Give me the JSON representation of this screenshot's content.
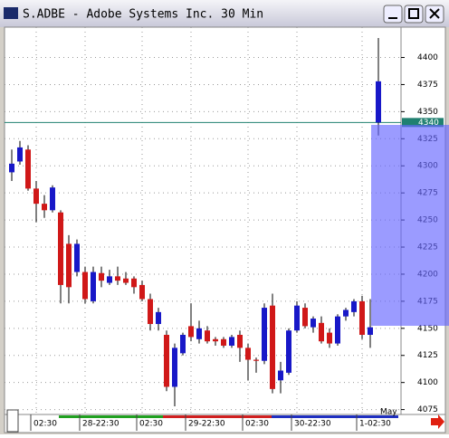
{
  "chart_data": {
    "type": "candlestick",
    "title": "S.ADBE - Adobe Systems Inc. 30 Min",
    "categories": [
      null,
      null,
      null,
      "02:30",
      null,
      null,
      null,
      null,
      null,
      "28-22:30",
      null,
      null,
      null,
      null,
      null,
      null,
      "02:30",
      null,
      null,
      null,
      null,
      null,
      "29-22:30",
      null,
      null,
      null,
      null,
      null,
      null,
      "02:30",
      null,
      null,
      null,
      null,
      null,
      "30-22:30",
      null,
      null,
      null,
      null,
      null,
      null,
      null,
      "1-02:30",
      null,
      null
    ],
    "open": [
      4294,
      4304,
      4315,
      4279,
      4265,
      4259,
      4257,
      4228,
      4202,
      4202,
      4175,
      4201,
      4192,
      4198,
      4196,
      4196,
      4190,
      4177,
      4154,
      4144,
      4096,
      4127,
      4152,
      4140,
      4148,
      4140,
      4140,
      4134,
      4144,
      4132,
      4121,
      4120,
      4171,
      4102,
      4109,
      4148,
      4169,
      4151,
      4155,
      4146,
      4136,
      4161,
      4165,
      4175,
      4144,
      4340
    ],
    "high": [
      4315,
      4323,
      4319,
      4286,
      4273,
      4282,
      4259,
      4236,
      4232,
      4207,
      4207,
      4207,
      4204,
      4207,
      4202,
      4198,
      4194,
      4182,
      4169,
      4148,
      4136,
      4146,
      4173,
      4157,
      4152,
      4142,
      4142,
      4144,
      4148,
      4136,
      4123,
      4173,
      4182,
      4119,
      4150,
      4175,
      4173,
      4161,
      4161,
      4150,
      4163,
      4169,
      4177,
      4180,
      4177,
      4418
    ],
    "low": [
      4286,
      4301,
      4277,
      4248,
      4252,
      4257,
      4173,
      4173,
      4198,
      4173,
      4173,
      4188,
      4190,
      4190,
      4190,
      4182,
      4175,
      4148,
      4148,
      4092,
      4078,
      4125,
      4138,
      4136,
      4136,
      4134,
      4132,
      4132,
      4119,
      4102,
      4109,
      4117,
      4090,
      4090,
      4107,
      4146,
      4150,
      4146,
      4136,
      4132,
      4134,
      4157,
      4161,
      4140,
      4132,
      4328
    ],
    "close": [
      4302,
      4317,
      4279,
      4265,
      4259,
      4280,
      4190,
      4188,
      4228,
      4177,
      4202,
      4194,
      4198,
      4194,
      4192,
      4188,
      4177,
      4154,
      4165,
      4096,
      4132,
      4144,
      4142,
      4150,
      4138,
      4138,
      4134,
      4142,
      4132,
      4121,
      4120,
      4169,
      4094,
      4111,
      4148,
      4171,
      4152,
      4159,
      4138,
      4136,
      4161,
      4167,
      4175,
      4144,
      4151,
      4378
    ],
    "up_color": "#1818c8",
    "down_color": "#d01818",
    "ylim": [
      4073,
      4428
    ],
    "yticks": [
      4075,
      4100,
      4125,
      4150,
      4175,
      4200,
      4225,
      4250,
      4275,
      4300,
      4325,
      4350,
      4375,
      4400
    ],
    "grid": true,
    "reference_line": 4340,
    "annotation": "May"
  }
}
